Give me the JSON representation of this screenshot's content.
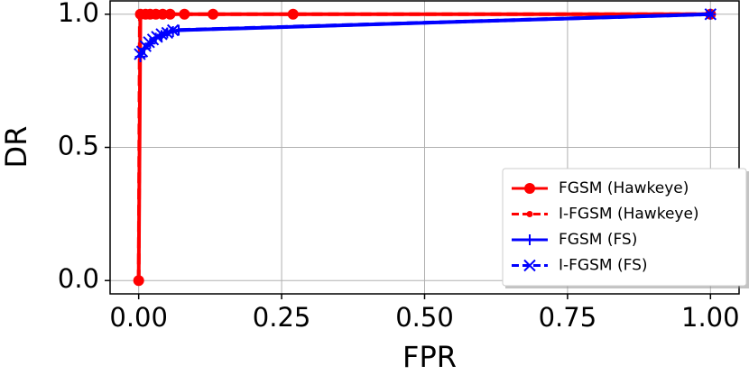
{
  "chart_data": {
    "type": "line",
    "xlabel": "FPR",
    "ylabel": "DR",
    "xlim": [
      -0.05,
      1.05
    ],
    "ylim": [
      -0.05,
      1.05
    ],
    "xticks": [
      {
        "value": 0,
        "label": "0.00"
      },
      {
        "value": 0.25,
        "label": "0.25"
      },
      {
        "value": 0.5,
        "label": "0.50"
      },
      {
        "value": 0.75,
        "label": "0.75"
      },
      {
        "value": 1,
        "label": "1.00"
      }
    ],
    "yticks": [
      {
        "value": 0,
        "label": "0.0"
      },
      {
        "value": 0.5,
        "label": "0.5"
      },
      {
        "value": 1,
        "label": "1.0"
      }
    ],
    "grid": true,
    "legend": "lower right",
    "series": [
      {
        "name": "FGSM (Hawkeye)",
        "color": "#ff0000",
        "marker": "o",
        "linestyle": "solid",
        "x": [
          0,
          0.003,
          0.012,
          0.02,
          0.03,
          0.042,
          0.055,
          0.08,
          0.13,
          0.27,
          1.0
        ],
        "values": [
          0,
          1,
          1,
          1,
          1,
          1,
          1,
          1,
          1,
          1,
          1
        ]
      },
      {
        "name": "I-FGSM (Hawkeye)",
        "color": "#ff0000",
        "marker": ".",
        "linestyle": "dashed",
        "x": [
          0,
          0.002,
          0.01,
          0.05,
          1.0
        ],
        "values": [
          0,
          1,
          1,
          1,
          1
        ]
      },
      {
        "name": "FGSM (FS)",
        "color": "#0000ff",
        "marker": "+",
        "linestyle": "solid",
        "x": [
          0.003,
          0.01,
          0.02,
          0.03,
          0.04,
          0.05,
          0.06,
          0.07,
          1.0
        ],
        "values": [
          0.84,
          0.87,
          0.89,
          0.91,
          0.92,
          0.93,
          0.935,
          0.94,
          1.0
        ]
      },
      {
        "name": "I-FGSM (FS)",
        "color": "#0000ff",
        "marker": "x",
        "linestyle": "dashed",
        "x": [
          0.002,
          0.006,
          0.012,
          0.018,
          0.025,
          0.032,
          0.04,
          0.05,
          0.06,
          1.0
        ],
        "values": [
          0.85,
          0.86,
          0.88,
          0.895,
          0.905,
          0.915,
          0.925,
          0.93,
          0.94,
          1.0
        ]
      }
    ]
  }
}
